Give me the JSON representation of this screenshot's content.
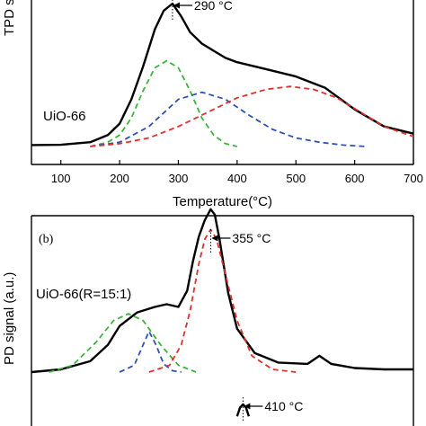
{
  "chart_data": [
    {
      "panel": "",
      "type": "line",
      "xlabel": "Temperature(°C)",
      "ylabel": "TPD s",
      "xlim": [
        50,
        700
      ],
      "xticks": [
        100,
        200,
        300,
        400,
        500,
        600,
        700
      ],
      "sample_label": "UiO-66",
      "annotation": {
        "text": "290 °C",
        "x": 290
      },
      "series": [
        {
          "style": "solid",
          "color": "#000000",
          "x": [
            50,
            100,
            150,
            180,
            200,
            220,
            240,
            260,
            275,
            290,
            305,
            320,
            340,
            360,
            380,
            400,
            450,
            500,
            550,
            600,
            650,
            700
          ],
          "y": [
            0.01,
            0.012,
            0.03,
            0.08,
            0.16,
            0.33,
            0.56,
            0.82,
            0.95,
            1.0,
            0.91,
            0.8,
            0.72,
            0.67,
            0.62,
            0.59,
            0.54,
            0.49,
            0.41,
            0.26,
            0.14,
            0.09
          ]
        },
        {
          "style": "dashed",
          "color": "#3cb33c",
          "x": [
            150,
            180,
            200,
            220,
            240,
            260,
            280,
            300,
            320,
            340,
            360,
            380,
            400
          ],
          "y": [
            0.0,
            0.03,
            0.08,
            0.2,
            0.39,
            0.55,
            0.6,
            0.55,
            0.39,
            0.2,
            0.08,
            0.02,
            0.0
          ]
        },
        {
          "style": "dashed",
          "color": "#2f50b4",
          "x": [
            150,
            200,
            250,
            300,
            340,
            380,
            420,
            460,
            500,
            540,
            580,
            620
          ],
          "y": [
            0.0,
            0.03,
            0.14,
            0.33,
            0.38,
            0.33,
            0.22,
            0.12,
            0.06,
            0.03,
            0.01,
            0.0
          ]
        },
        {
          "style": "dashed",
          "color": "#e0302c",
          "x": [
            150,
            200,
            250,
            300,
            350,
            400,
            450,
            490,
            530,
            570,
            610,
            650,
            700
          ],
          "y": [
            0.0,
            0.02,
            0.06,
            0.14,
            0.24,
            0.34,
            0.4,
            0.42,
            0.4,
            0.34,
            0.24,
            0.14,
            0.07
          ]
        }
      ]
    },
    {
      "panel": "(b)",
      "type": "line",
      "ylabel": "PD signal (a.u.)",
      "xlim": [
        50,
        700
      ],
      "sample_label": "UiO-66(R=15:1)",
      "annotation": {
        "text": "355 °C",
        "x": 355
      },
      "series": [
        {
          "style": "solid",
          "color": "#000000",
          "x": [
            50,
            100,
            150,
            180,
            200,
            230,
            260,
            280,
            300,
            315,
            325,
            335,
            345,
            355,
            362,
            370,
            385,
            400,
            430,
            470,
            520,
            540,
            560,
            600,
            650,
            700
          ],
          "y": [
            0.0,
            0.02,
            0.08,
            0.2,
            0.34,
            0.44,
            0.48,
            0.5,
            0.48,
            0.6,
            0.82,
            1.0,
            1.12,
            1.2,
            1.16,
            0.98,
            0.58,
            0.32,
            0.14,
            0.07,
            0.06,
            0.12,
            0.06,
            0.03,
            0.02,
            0.02
          ]
        },
        {
          "style": "dashed",
          "color": "#3cb33c",
          "x": [
            80,
            120,
            160,
            190,
            215,
            240,
            270,
            300,
            330
          ],
          "y": [
            0.0,
            0.05,
            0.22,
            0.38,
            0.43,
            0.38,
            0.2,
            0.05,
            0.0
          ]
        },
        {
          "style": "dashed",
          "color": "#2f50b4",
          "x": [
            200,
            225,
            240,
            250,
            262,
            275,
            290,
            305
          ],
          "y": [
            0.0,
            0.05,
            0.2,
            0.3,
            0.2,
            0.06,
            0.01,
            0.0
          ]
        },
        {
          "style": "dashed",
          "color": "#e0302c",
          "x": [
            250,
            285,
            305,
            320,
            335,
            345,
            355,
            365,
            380,
            400,
            425,
            460,
            500
          ],
          "y": [
            0.0,
            0.05,
            0.2,
            0.45,
            0.8,
            0.98,
            1.05,
            0.98,
            0.72,
            0.38,
            0.12,
            0.02,
            0.0
          ]
        }
      ]
    },
    {
      "panel": "",
      "type": "line",
      "xlim": [
        50,
        700
      ],
      "annotation": {
        "text": "410 °C",
        "x": 410
      },
      "series": [
        {
          "style": "solid",
          "color": "#000000",
          "x": [
            400,
            405,
            410,
            415,
            420
          ],
          "y": [
            0.7,
            0.92,
            1.0,
            0.92,
            0.7
          ]
        }
      ]
    }
  ]
}
